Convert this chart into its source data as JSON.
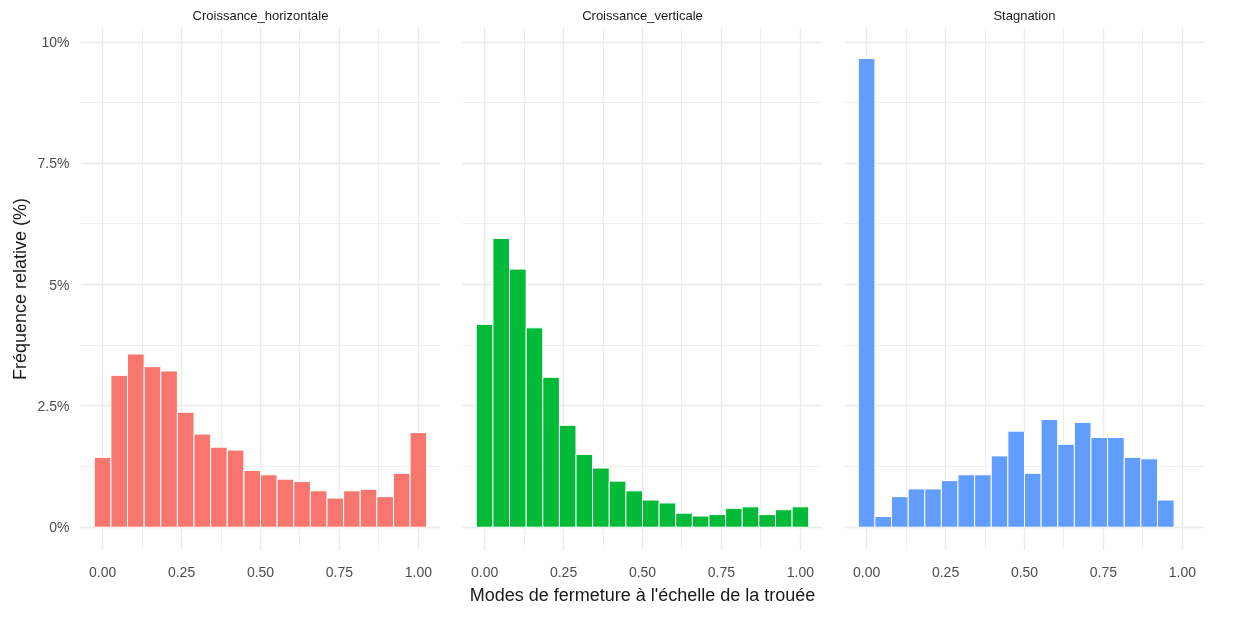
{
  "chart_data": [
    {
      "type": "histogram",
      "title": "Croissance_horizontale",
      "ylabel": "Fréquence relative (%)",
      "color": "#f8766d",
      "bins": [
        -0.0263,
        0.0263,
        0.0789,
        0.1316,
        0.1842,
        0.2368,
        0.2895,
        0.3421,
        0.3947,
        0.4474,
        0.5,
        0.5526,
        0.6053,
        0.6579,
        0.7105,
        0.7632,
        0.8158,
        0.8684,
        0.9211,
        0.9737,
        1.0263
      ],
      "values": [
        1.44,
        3.13,
        3.57,
        3.31,
        3.22,
        2.37,
        1.92,
        1.65,
        1.59,
        1.17,
        1.08,
        0.99,
        0.94,
        0.75,
        0.6,
        0.75,
        0.78,
        0.63,
        1.11,
        1.95
      ],
      "xlim": [
        -0.07,
        1.07
      ],
      "ylim": [
        -0.48,
        10.3
      ],
      "xticks": [
        {
          "value": 0,
          "label": "0.00"
        },
        {
          "value": 0.25,
          "label": "0.25"
        },
        {
          "value": 0.5,
          "label": "0.50"
        },
        {
          "value": 0.75,
          "label": "0.75"
        },
        {
          "value": 1,
          "label": "1.00"
        }
      ],
      "yticks": [
        {
          "value": 0,
          "label": "0%"
        },
        {
          "value": 2.5,
          "label": "2.5%"
        },
        {
          "value": 5,
          "label": "5%"
        },
        {
          "value": 7.5,
          "label": "7.5%"
        },
        {
          "value": 10,
          "label": "10%"
        }
      ],
      "grid": true
    },
    {
      "type": "histogram",
      "title": "Croissance_verticale",
      "xlabel": "Modes de fermeture à l'échelle de la trouée",
      "color": "#00ba38",
      "bins": [
        -0.0263,
        0.0263,
        0.0789,
        0.1316,
        0.1842,
        0.2368,
        0.2895,
        0.3421,
        0.3947,
        0.4474,
        0.5,
        0.5526,
        0.6053,
        0.6579,
        0.7105,
        0.7632,
        0.8158,
        0.8684,
        0.9211,
        0.9737,
        1.0263
      ],
      "values": [
        4.18,
        5.95,
        5.32,
        4.11,
        3.09,
        2.1,
        1.5,
        1.22,
        0.95,
        0.75,
        0.56,
        0.5,
        0.29,
        0.23,
        0.26,
        0.39,
        0.42,
        0.26,
        0.36,
        0.42
      ],
      "xlim": [
        -0.07,
        1.07
      ],
      "ylim": [
        -0.48,
        10.3
      ],
      "xticks": [
        {
          "value": 0,
          "label": "0.00"
        },
        {
          "value": 0.25,
          "label": "0.25"
        },
        {
          "value": 0.5,
          "label": "0.50"
        },
        {
          "value": 0.75,
          "label": "0.75"
        },
        {
          "value": 1,
          "label": "1.00"
        }
      ],
      "yticks": [
        0,
        2.5,
        5,
        7.5,
        10
      ],
      "grid": true,
      "tick_labels": "x"
    },
    {
      "type": "histogram",
      "title": "Stagnation",
      "color": "#619cff",
      "bins": [
        -0.0263,
        0.0263,
        0.0789,
        0.1316,
        0.1842,
        0.2368,
        0.2895,
        0.3421,
        0.3947,
        0.4474,
        0.5,
        0.5526,
        0.6053,
        0.6579,
        0.7105,
        0.7632,
        0.8158,
        0.8684,
        0.9211,
        0.9737,
        1.0263
      ],
      "values": [
        9.66,
        0.22,
        0.63,
        0.79,
        0.79,
        0.96,
        1.08,
        1.08,
        1.47,
        1.98,
        1.11,
        2.22,
        1.71,
        2.16,
        1.85,
        1.85,
        1.44,
        1.41,
        0.56,
        0
      ],
      "xlim": [
        -0.07,
        1.07
      ],
      "ylim": [
        -0.48,
        10.3
      ],
      "xticks": [
        {
          "value": 0,
          "label": "0.00"
        },
        {
          "value": 0.25,
          "label": "0.25"
        },
        {
          "value": 0.5,
          "label": "0.50"
        },
        {
          "value": 0.75,
          "label": "0.75"
        },
        {
          "value": 1,
          "label": "1.00"
        }
      ],
      "yticks": [
        0,
        2.5,
        5,
        7.5,
        10
      ],
      "grid": true,
      "tick_labels": "x"
    }
  ]
}
